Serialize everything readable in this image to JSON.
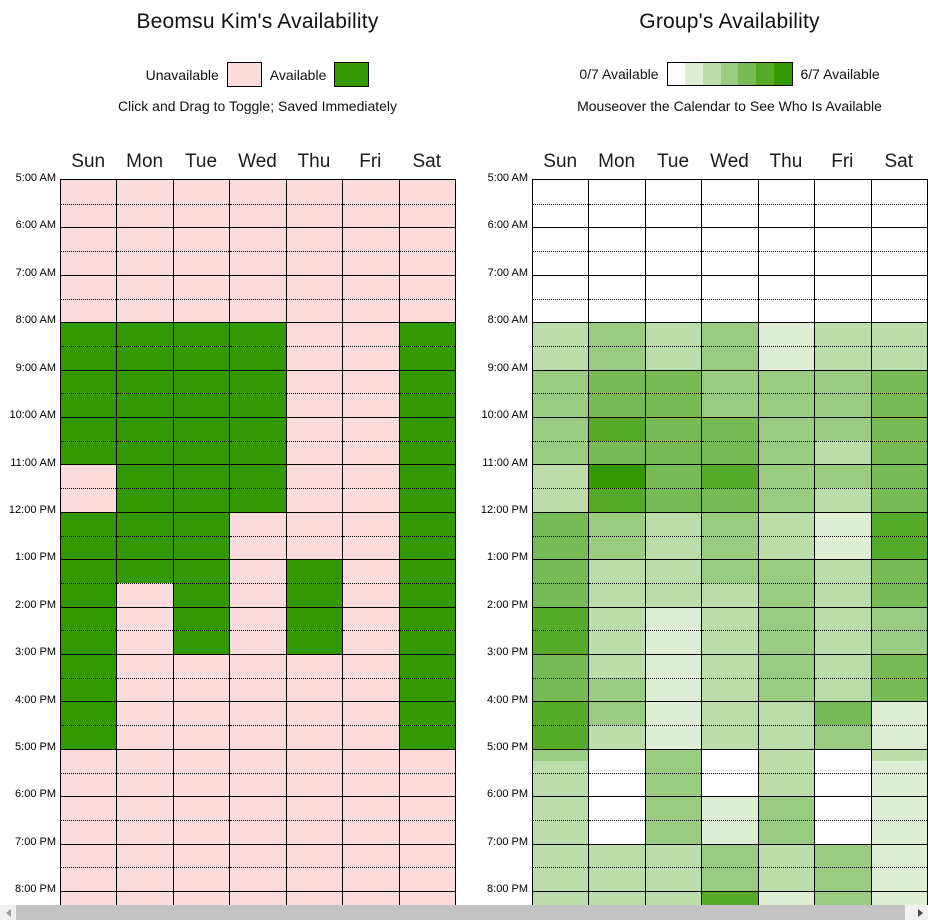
{
  "days": [
    "Sun",
    "Mon",
    "Tue",
    "Wed",
    "Thu",
    "Fri",
    "Sat"
  ],
  "times": [
    "5:00 AM",
    "6:00 AM",
    "7:00 AM",
    "8:00 AM",
    "9:00 AM",
    "10:00 AM",
    "11:00 AM",
    "12:00 PM",
    "1:00 PM",
    "2:00 PM",
    "3:00 PM",
    "4:00 PM",
    "5:00 PM",
    "6:00 PM",
    "7:00 PM",
    "8:00 PM"
  ],
  "personal": {
    "title": "Beomsu Kim's Availability",
    "legend": {
      "unavailable_label": "Unavailable",
      "available_label": "Available"
    },
    "subtitle": "Click and Drag to Toggle; Saved Immediately",
    "colors": {
      "unavailable": "#fbdbdb",
      "available": "#339900"
    },
    "slots": {
      "Sun": "UUUUUUAAAAAAUUAAAAAAAAAAUUUUUUU",
      "Mon": "UUUUUUAAAAAAAAAAAUUUUUUUUUUUUUU",
      "Tue": "UUUUUUAAAAAAAAAAAAAAUUUUUUUUUUU",
      "Wed": "UUUUUUAAAAAAAAUUUUUUUUUUUUUUUUU",
      "Thu": "UUUUUUUUUUUUUUUUAAAAUUUUUUUUUUU",
      "Fri": "UUUUUUUUUUUUUUUUUUUUUUUUUUUUUUU",
      "Sat": "UUUUUUAAAAAAAAAAAAAAAAAAUUUUUUU"
    }
  },
  "group": {
    "title": "Group's Availability",
    "legend": {
      "min_label": "0/7 Available",
      "max_label": "6/7 Available",
      "levels": 7
    },
    "subtitle": "Mouseover the Calendar to See Who Is Available",
    "palette": [
      "#ffffff",
      "#ddeed4",
      "#bbddaa",
      "#99cc80",
      "#77bb55",
      "#55aa2a",
      "#339900"
    ],
    "slots": {
      "Sun": [
        0,
        0,
        0,
        0,
        0,
        0,
        2,
        2,
        3,
        3,
        3,
        3,
        2,
        2,
        4,
        4,
        4,
        4,
        5,
        5,
        4,
        4,
        5,
        5,
        2,
        2,
        2,
        2,
        2,
        2,
        2
      ],
      "Mon": [
        0,
        0,
        0,
        0,
        0,
        0,
        3,
        3,
        4,
        4,
        5,
        4,
        6,
        5,
        3,
        3,
        2,
        2,
        2,
        2,
        2,
        3,
        3,
        2,
        0,
        0,
        0,
        0,
        2,
        2,
        2
      ],
      "Tue": [
        0,
        0,
        0,
        0,
        0,
        0,
        2,
        2,
        4,
        4,
        4,
        4,
        4,
        4,
        2,
        2,
        2,
        2,
        1,
        1,
        1,
        1,
        1,
        1,
        3,
        3,
        3,
        3,
        2,
        2,
        2
      ],
      "Wed": [
        0,
        0,
        0,
        0,
        0,
        0,
        3,
        3,
        3,
        3,
        4,
        4,
        5,
        4,
        3,
        3,
        3,
        2,
        2,
        2,
        2,
        2,
        2,
        2,
        0,
        0,
        1,
        1,
        3,
        3,
        5
      ],
      "Thu": [
        0,
        0,
        0,
        0,
        0,
        0,
        1,
        1,
        3,
        3,
        3,
        3,
        3,
        3,
        2,
        2,
        3,
        3,
        3,
        3,
        3,
        3,
        2,
        2,
        2,
        2,
        3,
        3,
        2,
        2,
        1
      ],
      "Fri": [
        0,
        0,
        0,
        0,
        0,
        0,
        2,
        2,
        3,
        3,
        3,
        2,
        3,
        2,
        1,
        1,
        2,
        2,
        2,
        2,
        2,
        2,
        4,
        3,
        0,
        0,
        0,
        0,
        3,
        3,
        3
      ],
      "Sat": [
        0,
        0,
        0,
        0,
        0,
        0,
        2,
        2,
        4,
        4,
        4,
        4,
        4,
        4,
        5,
        5,
        4,
        4,
        3,
        3,
        4,
        4,
        1,
        1,
        1,
        1,
        1,
        1,
        1,
        1,
        1
      ]
    },
    "quarter_overrides": [
      {
        "day": "Sun",
        "slot_index": 24,
        "quarter": 0,
        "level": 3
      },
      {
        "day": "Sat",
        "slot_index": 24,
        "quarter": 0,
        "level": 2
      }
    ]
  }
}
